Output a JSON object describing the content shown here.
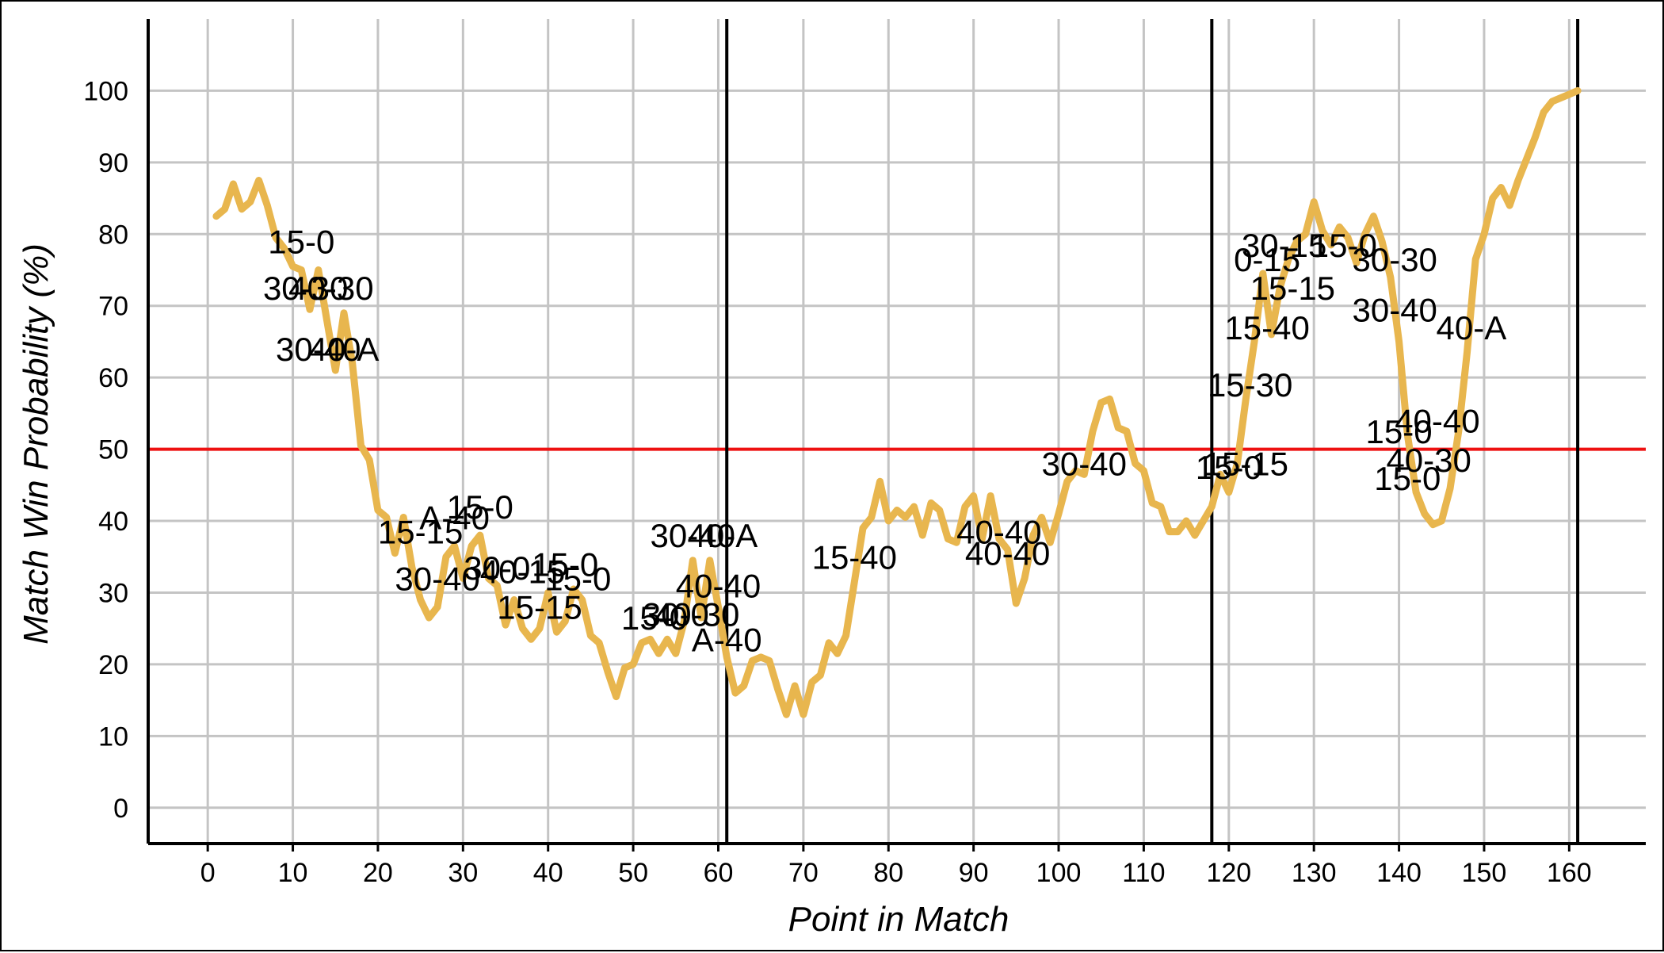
{
  "chart_data": {
    "type": "line",
    "title": "",
    "xlabel": "Point in Match",
    "ylabel": "Match Win Probability (%)",
    "xlim": [
      -7,
      169
    ],
    "ylim": [
      -5,
      110
    ],
    "xticks": [
      0,
      10,
      20,
      30,
      40,
      50,
      60,
      70,
      80,
      90,
      100,
      110,
      120,
      130,
      140,
      150,
      160
    ],
    "yticks": [
      0,
      10,
      20,
      30,
      40,
      50,
      60,
      70,
      80,
      90,
      100
    ],
    "grid": true,
    "reference_line": {
      "y": 50,
      "color": "#ee1111"
    },
    "set_markers": [
      61,
      118,
      161
    ],
    "colors": {
      "line": "#e8b64e",
      "grid": "#c4c4c4",
      "axis": "#000000"
    },
    "series": [
      {
        "name": "Match Win Probability",
        "points": [
          [
            1,
            82.5
          ],
          [
            2,
            83.5
          ],
          [
            3,
            87
          ],
          [
            4,
            83.5
          ],
          [
            5,
            84.5
          ],
          [
            6,
            87.5
          ],
          [
            7,
            84
          ],
          [
            8,
            79.5
          ],
          [
            9,
            78
          ],
          [
            10,
            75.5
          ],
          [
            11,
            75
          ],
          [
            12,
            69.5
          ],
          [
            13,
            75
          ],
          [
            14,
            68
          ],
          [
            15,
            61
          ],
          [
            16,
            69
          ],
          [
            17,
            62
          ],
          [
            18,
            50.5
          ],
          [
            19,
            48.5
          ],
          [
            20,
            41.5
          ],
          [
            21,
            40.5
          ],
          [
            22,
            35.5
          ],
          [
            23,
            40.5
          ],
          [
            24,
            33.5
          ],
          [
            25,
            29
          ],
          [
            26,
            26.5
          ],
          [
            27,
            28
          ],
          [
            28,
            35
          ],
          [
            29,
            36.5
          ],
          [
            30,
            32
          ],
          [
            31,
            36.5
          ],
          [
            32,
            38
          ],
          [
            33,
            32
          ],
          [
            34,
            31
          ],
          [
            35,
            25.5
          ],
          [
            36,
            29
          ],
          [
            37,
            25
          ],
          [
            38,
            23.5
          ],
          [
            39,
            25
          ],
          [
            40,
            30
          ],
          [
            41,
            24.5
          ],
          [
            42,
            26
          ],
          [
            43,
            30.5
          ],
          [
            44,
            29
          ],
          [
            45,
            24
          ],
          [
            46,
            23
          ],
          [
            47,
            19
          ],
          [
            48,
            15.5
          ],
          [
            49,
            19.5
          ],
          [
            50,
            20
          ],
          [
            51,
            23
          ],
          [
            52,
            23.5
          ],
          [
            53,
            21.5
          ],
          [
            54,
            23.5
          ],
          [
            55,
            21.5
          ],
          [
            56,
            26
          ],
          [
            57,
            34.5
          ],
          [
            58,
            26.5
          ],
          [
            59,
            34.5
          ],
          [
            60,
            28
          ],
          [
            61,
            21
          ],
          [
            62,
            16
          ],
          [
            63,
            17
          ],
          [
            64,
            20.5
          ],
          [
            65,
            21
          ],
          [
            66,
            20.5
          ],
          [
            67,
            16.5
          ],
          [
            68,
            13
          ],
          [
            69,
            17
          ],
          [
            70,
            13
          ],
          [
            71,
            17.5
          ],
          [
            72,
            18.5
          ],
          [
            73,
            23
          ],
          [
            74,
            21.5
          ],
          [
            75,
            24
          ],
          [
            76,
            31.5
          ],
          [
            77,
            39
          ],
          [
            78,
            40.5
          ],
          [
            79,
            45.5
          ],
          [
            80,
            40
          ],
          [
            81,
            41.5
          ],
          [
            82,
            40.5
          ],
          [
            83,
            42
          ],
          [
            84,
            38
          ],
          [
            85,
            42.5
          ],
          [
            86,
            41.5
          ],
          [
            87,
            37.5
          ],
          [
            88,
            37
          ],
          [
            89,
            42
          ],
          [
            90,
            43.5
          ],
          [
            91,
            37.5
          ],
          [
            92,
            43.5
          ],
          [
            93,
            37.5
          ],
          [
            94,
            36
          ],
          [
            95,
            28.5
          ],
          [
            96,
            32
          ],
          [
            97,
            38
          ],
          [
            98,
            40.5
          ],
          [
            99,
            37
          ],
          [
            100,
            41
          ],
          [
            101,
            45.5
          ],
          [
            102,
            47
          ],
          [
            103,
            46.5
          ],
          [
            104,
            52.5
          ],
          [
            105,
            56.5
          ],
          [
            106,
            57
          ],
          [
            107,
            53
          ],
          [
            108,
            52.5
          ],
          [
            109,
            48
          ],
          [
            110,
            47
          ],
          [
            111,
            42.5
          ],
          [
            112,
            42
          ],
          [
            113,
            38.5
          ],
          [
            114,
            38.5
          ],
          [
            115,
            40
          ],
          [
            116,
            38
          ],
          [
            117,
            40
          ],
          [
            118,
            42
          ],
          [
            119,
            46.5
          ],
          [
            120,
            44
          ],
          [
            121,
            48
          ],
          [
            122,
            57
          ],
          [
            123,
            65
          ],
          [
            124,
            74.5
          ],
          [
            125,
            66
          ],
          [
            126,
            72.5
          ],
          [
            127,
            76.5
          ],
          [
            128,
            79
          ],
          [
            129,
            80
          ],
          [
            130,
            84.5
          ],
          [
            131,
            80.5
          ],
          [
            132,
            78.5
          ],
          [
            133,
            81
          ],
          [
            134,
            79.5
          ],
          [
            135,
            76
          ],
          [
            136,
            80
          ],
          [
            137,
            82.5
          ],
          [
            138,
            79
          ],
          [
            139,
            74
          ],
          [
            140,
            65
          ],
          [
            141,
            52
          ],
          [
            142,
            44
          ],
          [
            143,
            41
          ],
          [
            144,
            39.5
          ],
          [
            145,
            40
          ],
          [
            146,
            44.5
          ],
          [
            147,
            52.5
          ],
          [
            148,
            63.5
          ],
          [
            149,
            76.5
          ],
          [
            150,
            80
          ],
          [
            151,
            85
          ],
          [
            152,
            86.5
          ],
          [
            153,
            84
          ],
          [
            154,
            87.5
          ],
          [
            155,
            90.5
          ],
          [
            156,
            93.5
          ],
          [
            157,
            97
          ],
          [
            158,
            98.5
          ],
          [
            159,
            99
          ],
          [
            160,
            99.5
          ],
          [
            161,
            100
          ]
        ]
      }
    ],
    "annotations": [
      {
        "text": "15-0",
        "x": 11,
        "y": 79
      },
      {
        "text": "30-30",
        "x": 11.5,
        "y": 72.5
      },
      {
        "text": "40-30",
        "x": 14.5,
        "y": 72.5
      },
      {
        "text": "30-40",
        "x": 13,
        "y": 64
      },
      {
        "text": "40-A",
        "x": 16,
        "y": 64
      },
      {
        "text": "15-15",
        "x": 25,
        "y": 38.5
      },
      {
        "text": "A-40",
        "x": 29,
        "y": 40.5
      },
      {
        "text": "15-0",
        "x": 32,
        "y": 42
      },
      {
        "text": "30-40",
        "x": 27,
        "y": 32
      },
      {
        "text": "30-0",
        "x": 34,
        "y": 33.5
      },
      {
        "text": "40-15",
        "x": 37,
        "y": 33
      },
      {
        "text": "15-0",
        "x": 42,
        "y": 34
      },
      {
        "text": "15-0",
        "x": 43.5,
        "y": 32
      },
      {
        "text": "15-15",
        "x": 39,
        "y": 28
      },
      {
        "text": "15-0",
        "x": 52.5,
        "y": 26.5
      },
      {
        "text": "30-0",
        "x": 55,
        "y": 27
      },
      {
        "text": "40-30",
        "x": 57.5,
        "y": 27
      },
      {
        "text": "30-40",
        "x": 57,
        "y": 38
      },
      {
        "text": "40-A",
        "x": 60.5,
        "y": 38
      },
      {
        "text": "40-40",
        "x": 60,
        "y": 31
      },
      {
        "text": "A-40",
        "x": 61,
        "y": 23.5
      },
      {
        "text": "15-40",
        "x": 76,
        "y": 35
      },
      {
        "text": "40-40",
        "x": 93,
        "y": 38.5
      },
      {
        "text": "40-40",
        "x": 94,
        "y": 35.5
      },
      {
        "text": "30-40",
        "x": 103,
        "y": 48
      },
      {
        "text": "15-0",
        "x": 120,
        "y": 47.5
      },
      {
        "text": "15-15",
        "x": 122,
        "y": 48
      },
      {
        "text": "30-15",
        "x": 126.5,
        "y": 78.5
      },
      {
        "text": "15-0",
        "x": 133.5,
        "y": 78.5
      },
      {
        "text": "0-15",
        "x": 124.5,
        "y": 76.5
      },
      {
        "text": "30-30",
        "x": 139.5,
        "y": 76.5
      },
      {
        "text": "15-15",
        "x": 127.5,
        "y": 72.5
      },
      {
        "text": "15-40",
        "x": 124.5,
        "y": 67
      },
      {
        "text": "30-40",
        "x": 139.5,
        "y": 69.5
      },
      {
        "text": "40-A",
        "x": 148.5,
        "y": 67
      },
      {
        "text": "15-30",
        "x": 122.5,
        "y": 59
      },
      {
        "text": "15-0",
        "x": 140,
        "y": 52.5
      },
      {
        "text": "40-40",
        "x": 144.5,
        "y": 54
      },
      {
        "text": "40-30",
        "x": 143.5,
        "y": 48.5
      },
      {
        "text": "15-0",
        "x": 141,
        "y": 46
      }
    ]
  }
}
